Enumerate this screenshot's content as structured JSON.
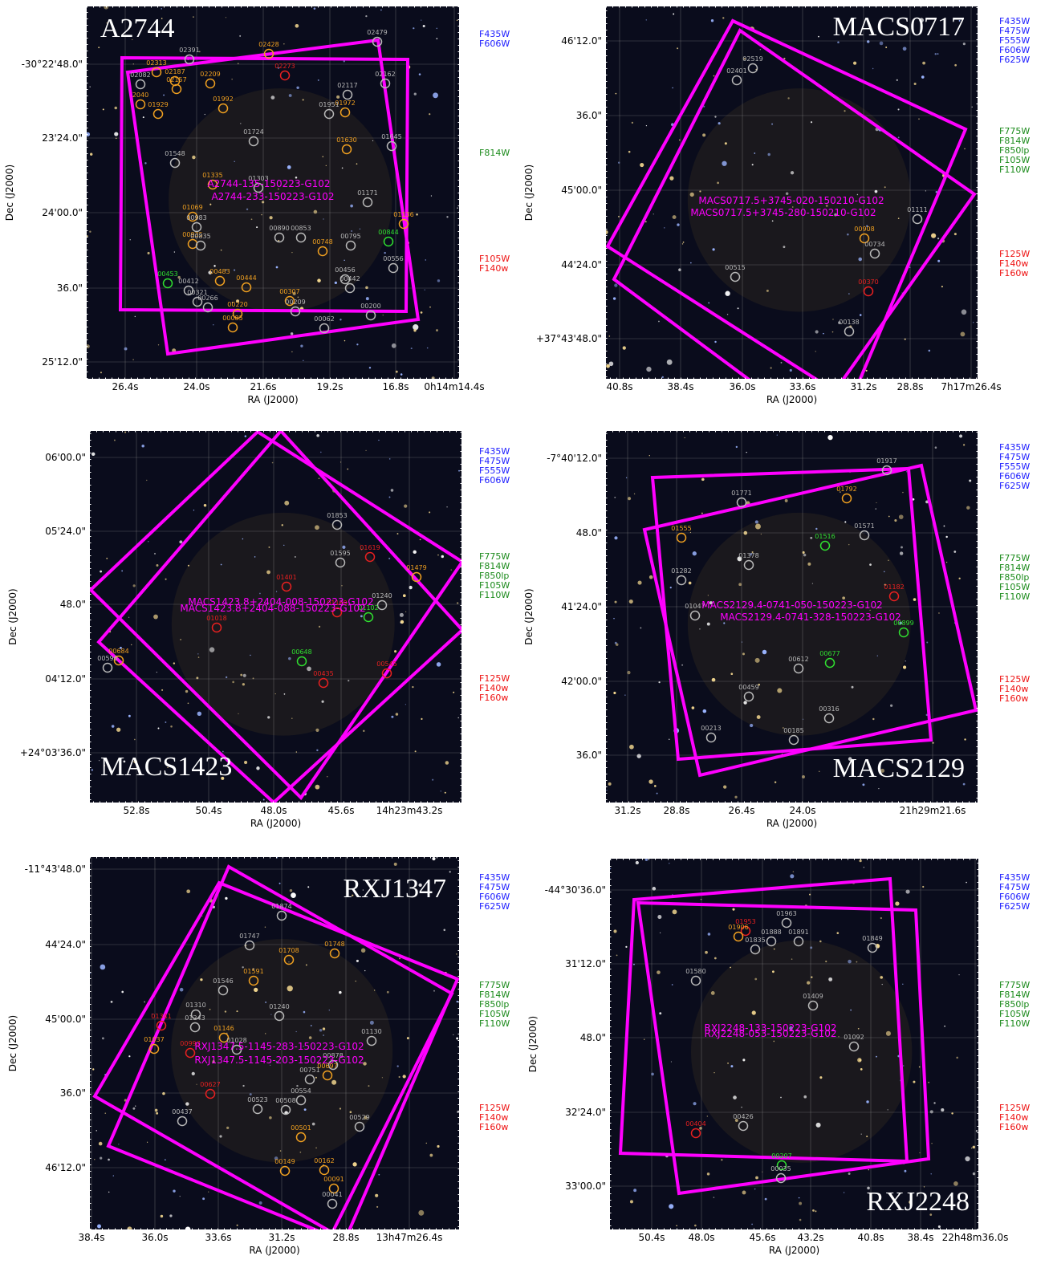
{
  "panels": [
    {
      "name": "A2744",
      "filters": {
        "blue": [
          "F435W",
          "F606W"
        ],
        "green": [
          "F814W"
        ],
        "red": [
          "F105W",
          "F140w"
        ]
      },
      "pointings": [
        "A2744-135-150223-G102",
        "A2744-233-150223-G102"
      ],
      "dec_ticks": [
        "-30°22'48.0\"",
        "23'24.0\"",
        "24'00.0\"",
        "36.0\"",
        "25'12.0\""
      ],
      "ra_ticks": [
        "26.4s",
        "24.0s",
        "21.6s",
        "19.2s",
        "16.8s",
        "0h14m14.4s"
      ],
      "x_label": "RA (J2000)",
      "y_label": "Dec (J2000)",
      "objects": [
        {
          "id": "02428",
          "color": "#f0a020"
        },
        {
          "id": "02273",
          "color": "#e82020"
        },
        {
          "id": "02479",
          "color": "#b8b8b8"
        },
        {
          "id": "02391",
          "color": "#b8b8b8"
        },
        {
          "id": "02313",
          "color": "#f0a020"
        },
        {
          "id": "02209",
          "color": "#f0a020"
        },
        {
          "id": "02082",
          "color": "#b8b8b8"
        },
        {
          "id": "02187",
          "color": "#f0a020"
        },
        {
          "id": "02157",
          "color": "#f0a020"
        },
        {
          "id": "01992",
          "color": "#f0a020"
        },
        {
          "id": "01929",
          "color": "#f0a020"
        },
        {
          "id": "2040",
          "color": "#f0a020"
        },
        {
          "id": "02117",
          "color": "#b8b8b8"
        },
        {
          "id": "02162",
          "color": "#b8b8b8"
        },
        {
          "id": "01972",
          "color": "#f0a020"
        },
        {
          "id": "01951",
          "color": "#b8b8b8"
        },
        {
          "id": "01724",
          "color": "#b8b8b8"
        },
        {
          "id": "01630",
          "color": "#f0a020"
        },
        {
          "id": "01645",
          "color": "#b8b8b8"
        },
        {
          "id": "01548",
          "color": "#b8b8b8"
        },
        {
          "id": "01335",
          "color": "#f0a020"
        },
        {
          "id": "01303",
          "color": "#b8b8b8"
        },
        {
          "id": "01171",
          "color": "#b8b8b8"
        },
        {
          "id": "01069",
          "color": "#f0a020"
        },
        {
          "id": "00983",
          "color": "#b8b8b8"
        },
        {
          "id": "00935",
          "color": "#f0a020"
        },
        {
          "id": "00835",
          "color": "#b8b8b8"
        },
        {
          "id": "00890",
          "color": "#b8b8b8"
        },
        {
          "id": "00853",
          "color": "#b8b8b8"
        },
        {
          "id": "00748",
          "color": "#f0a020"
        },
        {
          "id": "00795",
          "color": "#b8b8b8"
        },
        {
          "id": "00844",
          "color": "#30e030"
        },
        {
          "id": "01136",
          "color": "#f0a020"
        },
        {
          "id": "00556",
          "color": "#b8b8b8"
        },
        {
          "id": "00483",
          "color": "#f0a020"
        },
        {
          "id": "00444",
          "color": "#f0a020"
        },
        {
          "id": "00456",
          "color": "#b8b8b8"
        },
        {
          "id": "00442",
          "color": "#b8b8b8"
        },
        {
          "id": "00453",
          "color": "#30e030"
        },
        {
          "id": "00412",
          "color": "#b8b8b8"
        },
        {
          "id": "00321",
          "color": "#b8b8b8"
        },
        {
          "id": "00266",
          "color": "#b8b8b8"
        },
        {
          "id": "00307",
          "color": "#f0a020"
        },
        {
          "id": "00209",
          "color": "#b8b8b8"
        },
        {
          "id": "00220",
          "color": "#f0a020"
        },
        {
          "id": "00085",
          "color": "#f0a020"
        },
        {
          "id": "00062",
          "color": "#b8b8b8"
        },
        {
          "id": "00200",
          "color": "#b8b8b8"
        }
      ]
    },
    {
      "name": "MACS0717",
      "filters": {
        "blue": [
          "F435W",
          "F475W",
          "F555W",
          "F606W",
          "F625W"
        ],
        "green": [
          "F775W",
          "F814W",
          "F850lp",
          "F105W",
          "F110W"
        ],
        "red": [
          "F125W",
          "F140w",
          "F160w"
        ]
      },
      "pointings": [
        "MACS0717.5+3745-020-150210-G102",
        "MACS0717.5+3745-280-150210-G102"
      ],
      "dec_ticks": [
        "46'12.0\"",
        "36.0\"",
        "45'00.0\"",
        "44'24.0\"",
        "+37°43'48.0\""
      ],
      "ra_ticks": [
        "40.8s",
        "38.4s",
        "36.0s",
        "33.6s",
        "31.2s",
        "28.8s",
        "7h17m26.4s"
      ],
      "x_label": "RA (J2000)",
      "y_label": "Dec (J2000)",
      "objects": [
        {
          "id": "02519",
          "color": "#b8b8b8"
        },
        {
          "id": "02401",
          "color": "#b8b8b8"
        },
        {
          "id": "01111",
          "color": "#b8b8b8"
        },
        {
          "id": "00908",
          "color": "#f0a020"
        },
        {
          "id": "00734",
          "color": "#b8b8b8"
        },
        {
          "id": "00515",
          "color": "#b8b8b8"
        },
        {
          "id": "00370",
          "color": "#e82020"
        },
        {
          "id": "00138",
          "color": "#b8b8b8"
        }
      ]
    },
    {
      "name": "MACS1423",
      "filters": {
        "blue": [
          "F435W",
          "F475W",
          "F555W",
          "F606W"
        ],
        "green": [
          "F775W",
          "F814W",
          "F850lp",
          "F105W",
          "F110W"
        ],
        "red": [
          "F125W",
          "F140w",
          "F160w"
        ]
      },
      "pointings": [
        "MACS1423.8+2404-008-150223-G102",
        "MACS1423.8+2404-088-150223-G102"
      ],
      "dec_ticks": [
        "06'00.0\"",
        "05'24.0\"",
        "48.0\"",
        "04'12.0\"",
        "+24°03'36.0\""
      ],
      "ra_ticks": [
        "52.8s",
        "50.4s",
        "48.0s",
        "45.6s",
        "14h23m43.2s"
      ],
      "x_label": "RA (J2000)",
      "y_label": "Dec (J2000)",
      "objects": [
        {
          "id": "01853",
          "color": "#b8b8b8"
        },
        {
          "id": "01619",
          "color": "#e82020"
        },
        {
          "id": "01595",
          "color": "#b8b8b8"
        },
        {
          "id": "01479",
          "color": "#f0a020"
        },
        {
          "id": "01401",
          "color": "#e82020"
        },
        {
          "id": "01240",
          "color": "#b8b8b8"
        },
        {
          "id": "01169",
          "color": "#e82020"
        },
        {
          "id": "01102",
          "color": "#30e030"
        },
        {
          "id": "01018",
          "color": "#e82020"
        },
        {
          "id": "00684",
          "color": "#f0a020"
        },
        {
          "id": "00596",
          "color": "#b8b8b8"
        },
        {
          "id": "00648",
          "color": "#30e030"
        },
        {
          "id": "00435",
          "color": "#e82020"
        },
        {
          "id": "00545",
          "color": "#e82020"
        }
      ]
    },
    {
      "name": "MACS2129",
      "filters": {
        "blue": [
          "F435W",
          "F475W",
          "F555W",
          "F606W",
          "F625W"
        ],
        "green": [
          "F775W",
          "F814W",
          "F850lp",
          "F105W",
          "F110W"
        ],
        "red": [
          "F125W",
          "F140w",
          "F160w"
        ]
      },
      "pointings": [
        "MACS2129.4-0741-050-150223-G102",
        "MACS2129.4-0741-328-150223-G102"
      ],
      "dec_ticks": [
        "-7°40'12.0\"",
        "48.0\"",
        "41'24.0\"",
        "42'00.0\"",
        "36.0\""
      ],
      "ra_ticks": [
        "31.2s",
        "28.8s",
        "26.4s",
        "24.0s",
        "21h29m21.6s"
      ],
      "x_label": "RA (J2000)",
      "y_label": "Dec (J2000)",
      "objects": [
        {
          "id": "01917",
          "color": "#b8b8b8"
        },
        {
          "id": "01792",
          "color": "#f0a020"
        },
        {
          "id": "01771",
          "color": "#b8b8b8"
        },
        {
          "id": "01555",
          "color": "#f0a020"
        },
        {
          "id": "01571",
          "color": "#b8b8b8"
        },
        {
          "id": "01516",
          "color": "#30e030"
        },
        {
          "id": "01378",
          "color": "#b8b8b8"
        },
        {
          "id": "01282",
          "color": "#b8b8b8"
        },
        {
          "id": "01182",
          "color": "#e82020"
        },
        {
          "id": "01047",
          "color": "#b8b8b8"
        },
        {
          "id": "00899",
          "color": "#30e030"
        },
        {
          "id": "00677",
          "color": "#30e030"
        },
        {
          "id": "00612",
          "color": "#b8b8b8"
        },
        {
          "id": "00459",
          "color": "#b8b8b8"
        },
        {
          "id": "00316",
          "color": "#b8b8b8"
        },
        {
          "id": "00213",
          "color": "#b8b8b8"
        },
        {
          "id": "00185",
          "color": "#b8b8b8"
        }
      ]
    },
    {
      "name": "RXJ1347",
      "filters": {
        "blue": [
          "F435W",
          "F475W",
          "F606W",
          "F625W"
        ],
        "green": [
          "F775W",
          "F814W",
          "F850lp",
          "F105W",
          "F110W"
        ],
        "red": [
          "F125W",
          "F140w",
          "F160w"
        ]
      },
      "pointings": [
        "RXJ1347.5-1145-283-150223-G102",
        "RXJ1347.5-1145-203-150223-G102"
      ],
      "dec_ticks": [
        "-11°43'48.0\"",
        "44'24.0\"",
        "45'00.0\"",
        "36.0\"",
        "46'12.0\""
      ],
      "ra_ticks": [
        "38.4s",
        "36.0s",
        "33.6s",
        "31.2s",
        "28.8s",
        "13h47m26.4s"
      ],
      "x_label": "RA (J2000)",
      "y_label": "Dec (J2000)",
      "objects": [
        {
          "id": "01874",
          "color": "#b8b8b8"
        },
        {
          "id": "01747",
          "color": "#b8b8b8"
        },
        {
          "id": "01708",
          "color": "#f0a020"
        },
        {
          "id": "01748",
          "color": "#f0a020"
        },
        {
          "id": "01591",
          "color": "#f0a020"
        },
        {
          "id": "01546",
          "color": "#b8b8b8"
        },
        {
          "id": "01310",
          "color": "#b8b8b8"
        },
        {
          "id": "01243",
          "color": "#b8b8b8"
        },
        {
          "id": "01240",
          "color": "#b8b8b8"
        },
        {
          "id": "01341",
          "color": "#e82020"
        },
        {
          "id": "01146",
          "color": "#f0a020"
        },
        {
          "id": "01028",
          "color": "#b8b8b8"
        },
        {
          "id": "01130",
          "color": "#b8b8b8"
        },
        {
          "id": "01037",
          "color": "#f0a020"
        },
        {
          "id": "00997",
          "color": "#e82020"
        },
        {
          "id": "00878",
          "color": "#b8b8b8"
        },
        {
          "id": "00697",
          "color": "#f0a020"
        },
        {
          "id": "00751",
          "color": "#b8b8b8"
        },
        {
          "id": "00627",
          "color": "#e82020"
        },
        {
          "id": "00523",
          "color": "#b8b8b8"
        },
        {
          "id": "00508",
          "color": "#b8b8b8"
        },
        {
          "id": "00554",
          "color": "#b8b8b8"
        },
        {
          "id": "00437",
          "color": "#b8b8b8"
        },
        {
          "id": "00529",
          "color": "#b8b8b8"
        },
        {
          "id": "00501",
          "color": "#f0a020"
        },
        {
          "id": "00149",
          "color": "#f0a020"
        },
        {
          "id": "00162",
          "color": "#f0a020"
        },
        {
          "id": "00091",
          "color": "#f0a020"
        },
        {
          "id": "00041",
          "color": "#b8b8b8"
        }
      ]
    },
    {
      "name": "RXJ2248",
      "filters": {
        "blue": [
          "F435W",
          "F475W",
          "F606W",
          "F625W"
        ],
        "green": [
          "F775W",
          "F814W",
          "F850lp",
          "F105W",
          "F110W"
        ],
        "red": [
          "F125W",
          "F140w",
          "F160w"
        ]
      },
      "pointings": [
        "RXJ2248-133-150223-G102",
        "RXJ2248-053-150223-G102"
      ],
      "dec_ticks": [
        "-44°30'36.0\"",
        "31'12.0\"",
        "48.0\"",
        "32'24.0\"",
        "33'00.0\""
      ],
      "ra_ticks": [
        "50.4s",
        "48.0s",
        "45.6s",
        "43.2s",
        "40.8s",
        "38.4s",
        "22h48m36.0s"
      ],
      "x_label": "RA (J2000)",
      "y_label": "Dec (J2000)",
      "objects": [
        {
          "id": "01953",
          "color": "#e82020"
        },
        {
          "id": "01906",
          "color": "#f0a020"
        },
        {
          "id": "01835",
          "color": "#b8b8b8"
        },
        {
          "id": "01888",
          "color": "#b8b8b8"
        },
        {
          "id": "01963",
          "color": "#b8b8b8"
        },
        {
          "id": "01891",
          "color": "#b8b8b8"
        },
        {
          "id": "01849",
          "color": "#b8b8b8"
        },
        {
          "id": "01580",
          "color": "#b8b8b8"
        },
        {
          "id": "01409",
          "color": "#b8b8b8"
        },
        {
          "id": "01092",
          "color": "#b8b8b8"
        },
        {
          "id": "00426",
          "color": "#b8b8b8"
        },
        {
          "id": "00404",
          "color": "#e82020"
        },
        {
          "id": "00207",
          "color": "#30e030"
        },
        {
          "id": "00035",
          "color": "#b8b8b8"
        }
      ]
    }
  ]
}
